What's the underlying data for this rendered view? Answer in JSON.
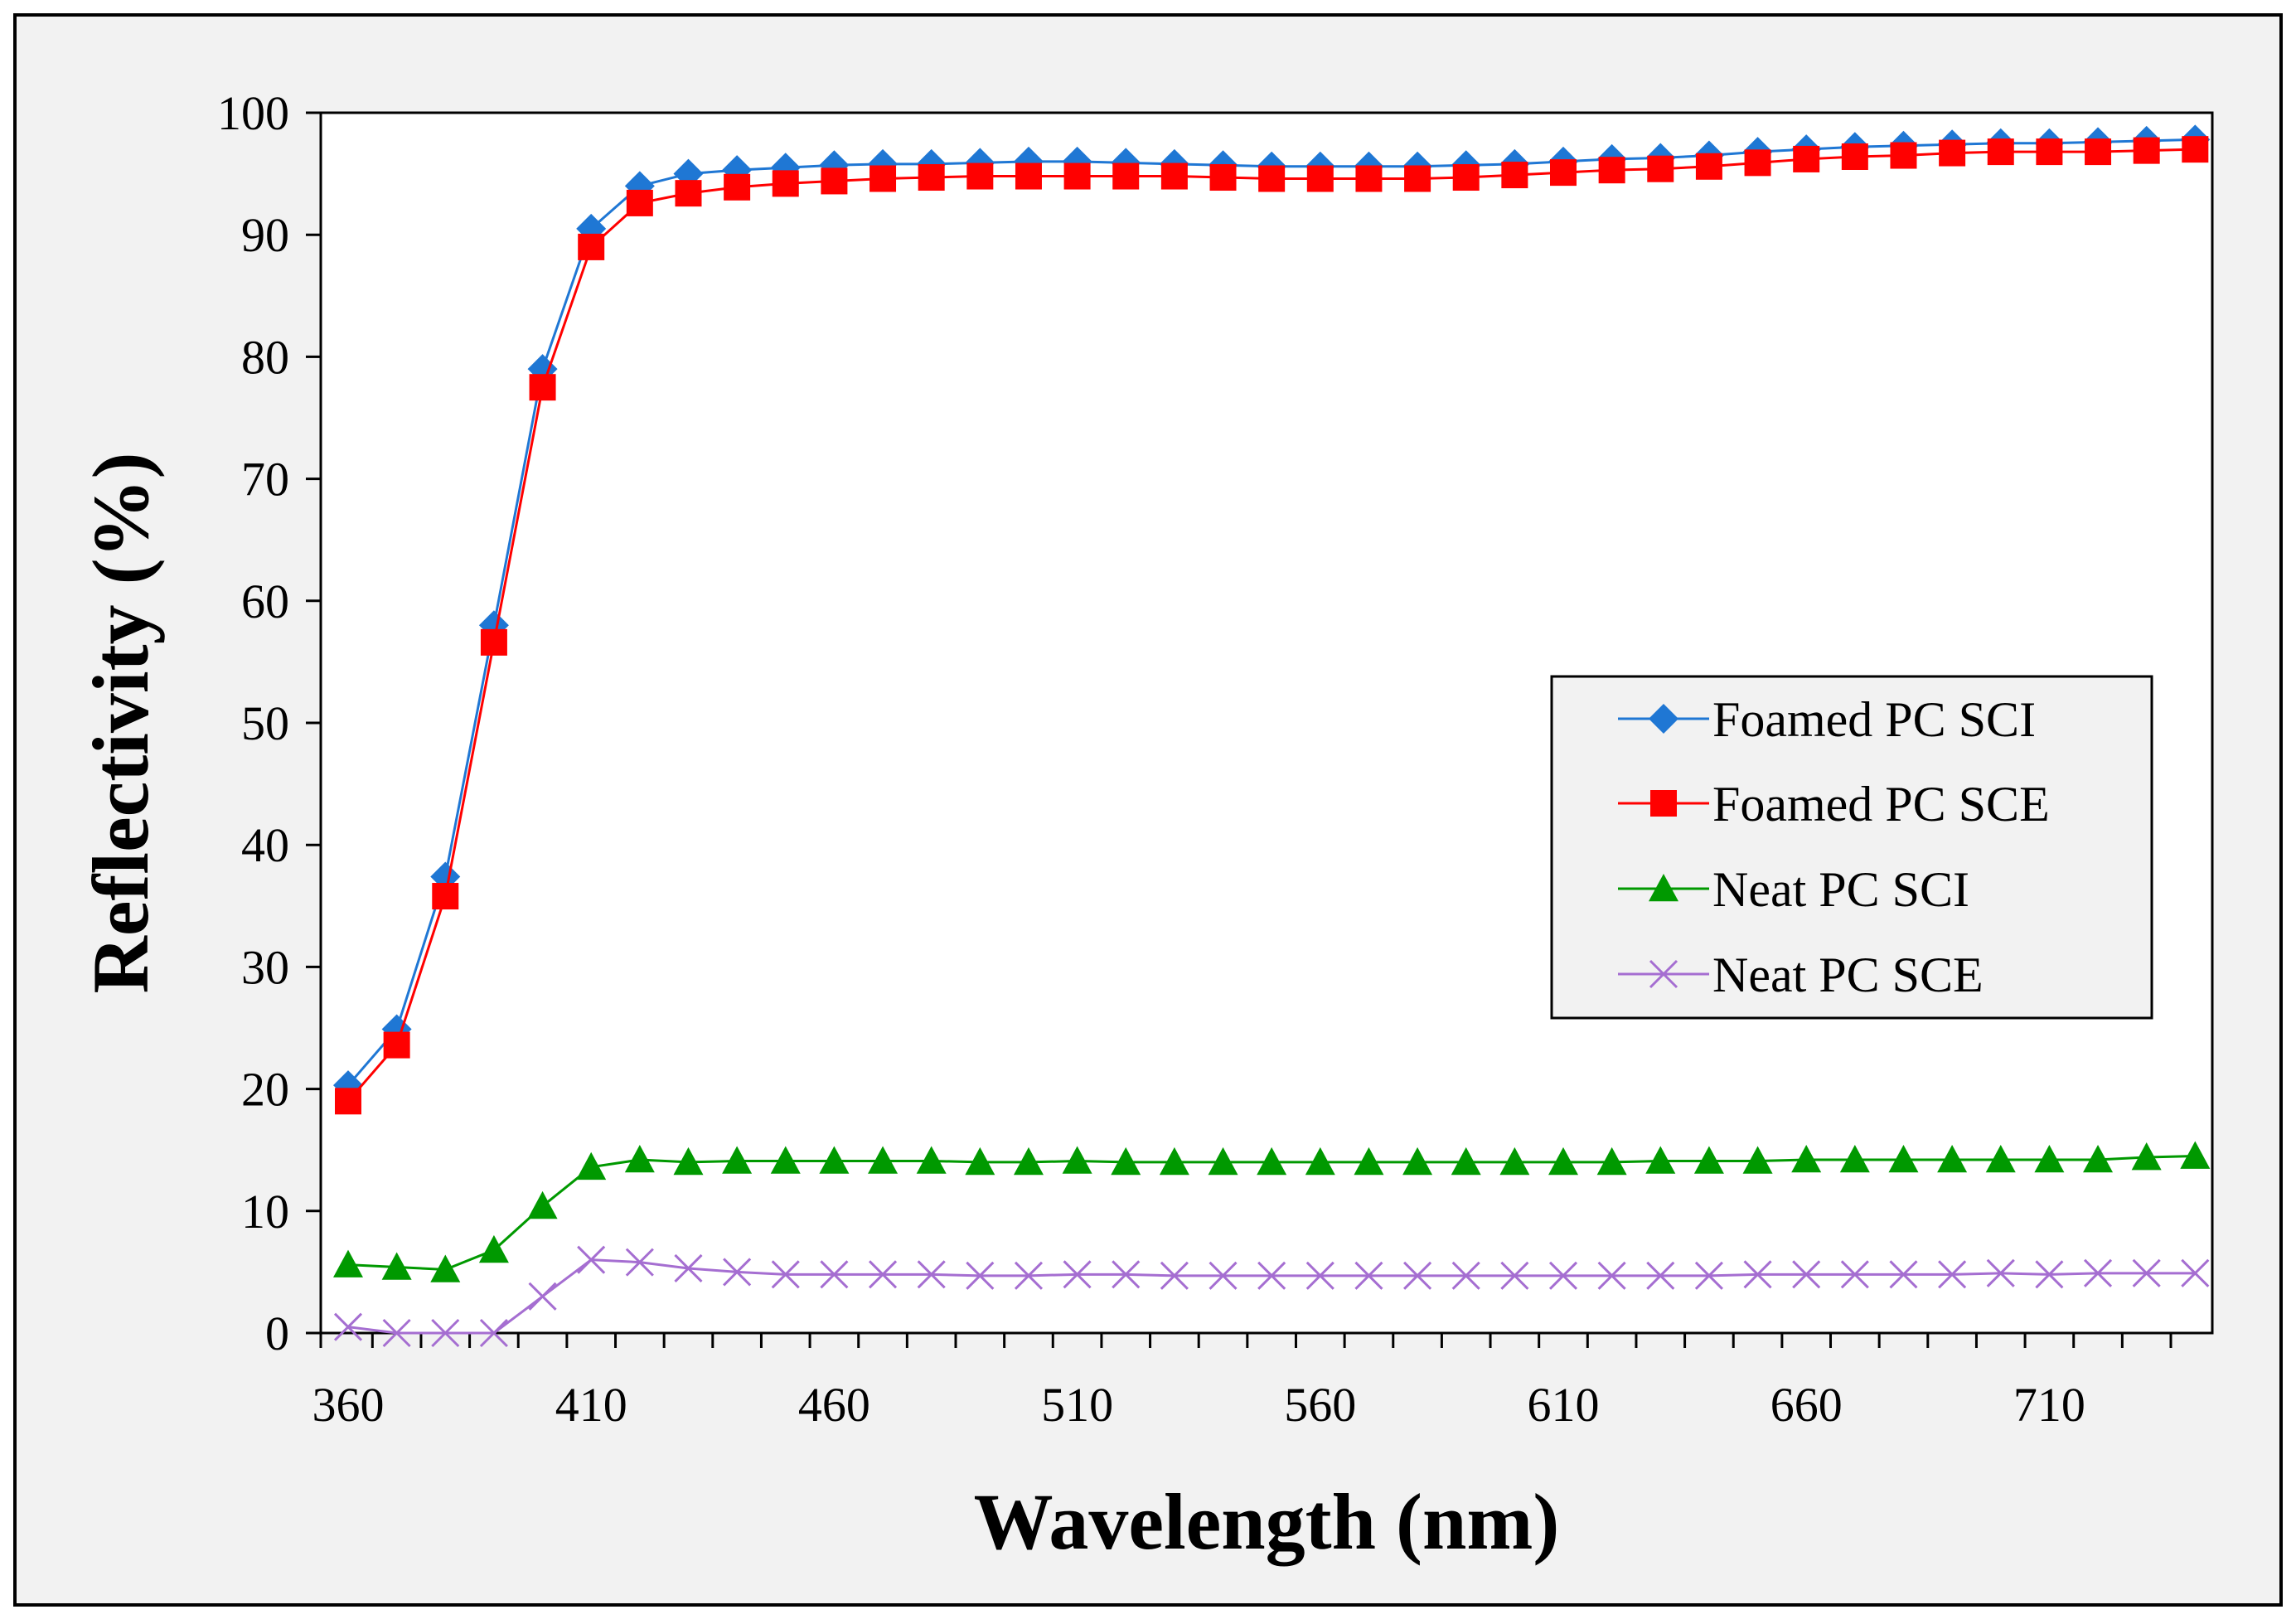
{
  "chart_data": {
    "type": "line",
    "title": "",
    "xlabel": "Wavelength (nm)",
    "ylabel": "Reflectivity (%)",
    "xlim": [
      360,
      740
    ],
    "ylim": [
      0,
      100
    ],
    "x_ticks": [
      360,
      410,
      460,
      510,
      560,
      610,
      660,
      710
    ],
    "x_tick_labels": [
      "360",
      "410",
      "460",
      "510",
      "560",
      "610",
      "660",
      "710"
    ],
    "y_ticks": [
      0,
      10,
      20,
      30,
      40,
      50,
      60,
      70,
      80,
      90,
      100
    ],
    "y_tick_labels": [
      "0",
      "10",
      "20",
      "30",
      "40",
      "50",
      "60",
      "70",
      "80",
      "90",
      "100"
    ],
    "grid": false,
    "legend_position": "right",
    "x": [
      360,
      370,
      380,
      390,
      400,
      410,
      420,
      430,
      440,
      450,
      460,
      470,
      480,
      490,
      500,
      510,
      520,
      530,
      540,
      550,
      560,
      570,
      580,
      590,
      600,
      610,
      620,
      630,
      640,
      650,
      660,
      670,
      680,
      690,
      700,
      710,
      720,
      730,
      740
    ],
    "series": [
      {
        "name": "Foamed PC SCI",
        "marker": "diamond",
        "color": "#1f77d4",
        "values": [
          20.3,
          24.9,
          37.4,
          58.0,
          79.0,
          90.5,
          94.0,
          95.0,
          95.3,
          95.5,
          95.7,
          95.8,
          95.8,
          95.9,
          96.0,
          96.0,
          95.9,
          95.8,
          95.7,
          95.6,
          95.6,
          95.6,
          95.6,
          95.7,
          95.8,
          96.0,
          96.2,
          96.3,
          96.5,
          96.8,
          97.0,
          97.2,
          97.3,
          97.4,
          97.5,
          97.5,
          97.6,
          97.7,
          97.8
        ]
      },
      {
        "name": "Foamed PC SCE",
        "marker": "square",
        "color": "#ff0000",
        "values": [
          19.0,
          23.6,
          35.8,
          56.6,
          77.5,
          89.0,
          92.6,
          93.4,
          93.9,
          94.2,
          94.4,
          94.6,
          94.7,
          94.8,
          94.8,
          94.8,
          94.8,
          94.8,
          94.7,
          94.6,
          94.6,
          94.6,
          94.6,
          94.7,
          94.9,
          95.1,
          95.3,
          95.4,
          95.6,
          95.9,
          96.2,
          96.4,
          96.5,
          96.7,
          96.8,
          96.8,
          96.8,
          96.9,
          97.0
        ]
      },
      {
        "name": "Neat PC SCI",
        "marker": "triangle",
        "color": "#009900",
        "values": [
          5.6,
          5.4,
          5.2,
          6.8,
          10.4,
          13.6,
          14.2,
          14.0,
          14.1,
          14.1,
          14.1,
          14.1,
          14.1,
          14.0,
          14.0,
          14.1,
          14.0,
          14.0,
          14.0,
          14.0,
          14.0,
          14.0,
          14.0,
          14.0,
          14.0,
          14.0,
          14.0,
          14.1,
          14.1,
          14.1,
          14.2,
          14.2,
          14.2,
          14.2,
          14.2,
          14.2,
          14.2,
          14.4,
          14.5
        ]
      },
      {
        "name": "Neat PC SCE",
        "marker": "x",
        "color": "#a56ed1",
        "values": [
          0.5,
          0.0,
          0.0,
          0.0,
          3.0,
          6.0,
          5.8,
          5.3,
          5.0,
          4.8,
          4.8,
          4.8,
          4.8,
          4.7,
          4.7,
          4.8,
          4.8,
          4.7,
          4.7,
          4.7,
          4.7,
          4.7,
          4.7,
          4.7,
          4.7,
          4.7,
          4.7,
          4.7,
          4.7,
          4.8,
          4.8,
          4.8,
          4.8,
          4.8,
          4.9,
          4.8,
          4.9,
          4.9,
          4.9
        ]
      }
    ]
  }
}
